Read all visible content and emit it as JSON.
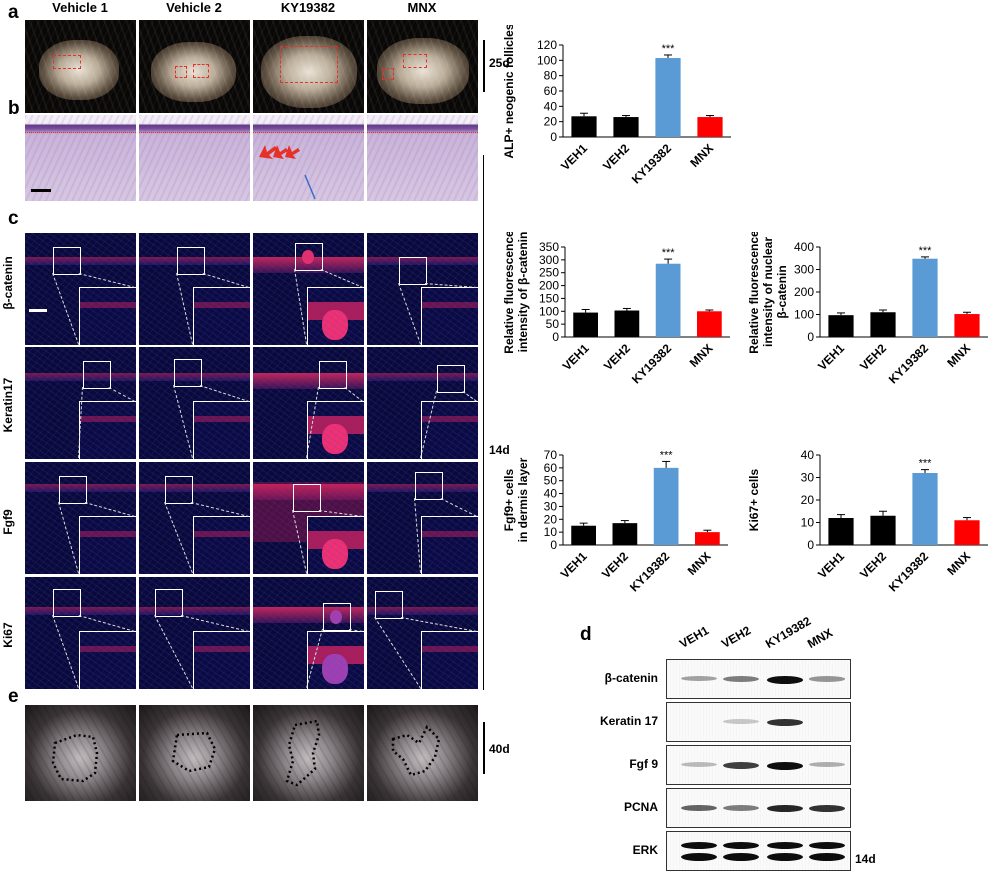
{
  "panel_letters": {
    "a": "a",
    "b": "b",
    "c": "c",
    "d": "d",
    "e": "e"
  },
  "columns": [
    "Vehicle 1",
    "Vehicle 2",
    "KY19382",
    "MNX"
  ],
  "days": {
    "top": "25d",
    "middle": "14d",
    "bottom": "40d",
    "blot": "14d"
  },
  "stain_rows": [
    "β-catenin",
    "Keratin17",
    "Fgf9",
    "Ki67"
  ],
  "blot": {
    "lanes": [
      "VEH1",
      "VEH2",
      "KY19382",
      "MNX"
    ],
    "rows": [
      {
        "label": "β-catenin",
        "intensity": [
          0.35,
          0.5,
          0.95,
          0.4
        ]
      },
      {
        "label": "Keratin 17",
        "intensity": [
          0.0,
          0.2,
          0.8,
          0.0
        ]
      },
      {
        "label": "Fgf 9",
        "intensity": [
          0.25,
          0.75,
          0.95,
          0.3
        ]
      },
      {
        "label": "PCNA",
        "intensity": [
          0.6,
          0.5,
          0.85,
          0.8
        ]
      },
      {
        "label": "ERK",
        "intensity": [
          0.95,
          0.95,
          0.95,
          0.95
        ]
      }
    ]
  },
  "colors": {
    "vehicle": "#000000",
    "ky19382": "#5b9bd5",
    "mnx": "#ff0000"
  },
  "chart_data": [
    {
      "id": "alp",
      "type": "bar",
      "categories": [
        "VEH1",
        "VEH2",
        "KY19382",
        "MNX"
      ],
      "values": [
        27,
        26,
        103,
        26
      ],
      "errors": [
        4,
        2,
        4,
        2
      ],
      "ylim": [
        0,
        120
      ],
      "yticks": [
        0,
        20,
        40,
        60,
        80,
        100,
        120
      ],
      "ylabel": [
        "ALP+ neogenic follicles"
      ],
      "significance": "***",
      "sig_index": 2
    },
    {
      "id": "bcat",
      "type": "bar",
      "categories": [
        "VEH1",
        "VEH2",
        "KY19382",
        "MNX"
      ],
      "values": [
        95,
        103,
        285,
        100
      ],
      "errors": [
        12,
        8,
        18,
        5
      ],
      "ylim": [
        0,
        350
      ],
      "yticks": [
        0,
        50,
        100,
        150,
        200,
        250,
        300,
        350
      ],
      "ylabel": [
        "Relative fluorescence",
        "intensity of β-catenin"
      ],
      "significance": "***",
      "sig_index": 2
    },
    {
      "id": "nbcat",
      "type": "bar",
      "categories": [
        "VEH1",
        "VEH2",
        "KY19382",
        "MNX"
      ],
      "values": [
        97,
        110,
        348,
        102
      ],
      "errors": [
        10,
        10,
        8,
        8
      ],
      "ylim": [
        0,
        400
      ],
      "yticks": [
        0,
        100,
        200,
        300,
        400
      ],
      "ylabel": [
        "Relative fluorescence",
        "intensity of nuclear",
        "β-catenin"
      ],
      "significance": "***",
      "sig_index": 2
    },
    {
      "id": "fgf9",
      "type": "bar",
      "categories": [
        "VEH1",
        "VEH2",
        "KY19382",
        "MNX"
      ],
      "values": [
        15,
        17,
        60,
        10
      ],
      "errors": [
        2,
        2,
        5,
        1.5
      ],
      "ylim": [
        0,
        70
      ],
      "yticks": [
        0,
        10,
        20,
        30,
        40,
        50,
        60,
        70
      ],
      "ylabel": [
        "Fgf9+ cells",
        "in dermis layer"
      ],
      "significance": "***",
      "sig_index": 2
    },
    {
      "id": "ki67",
      "type": "bar",
      "categories": [
        "VEH1",
        "VEH2",
        "KY19382",
        "MNX"
      ],
      "values": [
        12,
        13,
        32,
        11
      ],
      "errors": [
        1.5,
        2,
        1.5,
        1.2
      ],
      "ylim": [
        0,
        40
      ],
      "yticks": [
        0,
        10,
        20,
        30,
        40
      ],
      "ylabel": [
        "Ki67+ cells"
      ],
      "significance": "***",
      "sig_index": 2
    }
  ]
}
